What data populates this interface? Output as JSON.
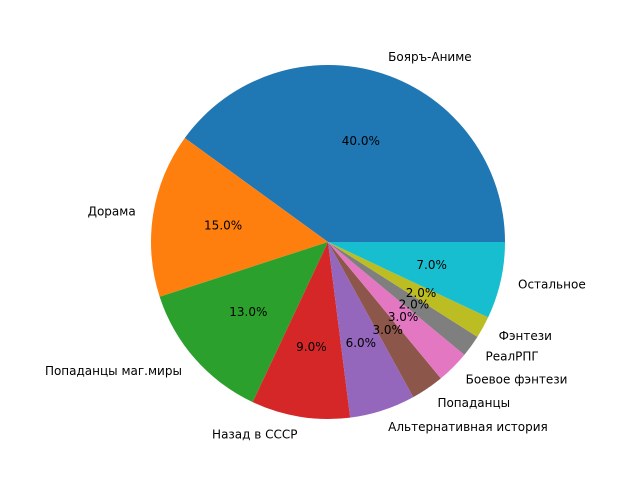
{
  "chart_data": {
    "type": "pie",
    "start_angle_deg": 0,
    "direction": "counterclockwise",
    "slices": [
      {
        "label": "Бояръ-Аниме",
        "value": 40.0,
        "pct_label": "40.0%",
        "color": "#1f77b4"
      },
      {
        "label": "Дорама",
        "value": 15.0,
        "pct_label": "15.0%",
        "color": "#ff7f0e"
      },
      {
        "label": "Попаданцы маг.миры",
        "value": 13.0,
        "pct_label": "13.0%",
        "color": "#2ca02c"
      },
      {
        "label": "Назад в СССР",
        "value": 9.0,
        "pct_label": "9.0%",
        "color": "#d62728"
      },
      {
        "label": "Альтернативная история",
        "value": 6.0,
        "pct_label": "6.0%",
        "color": "#9467bd"
      },
      {
        "label": "Попаданцы",
        "value": 3.0,
        "pct_label": "3.0%",
        "color": "#8c564b"
      },
      {
        "label": "Боевое фэнтези",
        "value": 3.0,
        "pct_label": "3.0%",
        "color": "#e377c2"
      },
      {
        "label": "РеалРПГ",
        "value": 2.0,
        "pct_label": "2.0%",
        "color": "#7f7f7f"
      },
      {
        "label": "Фэнтези",
        "value": 2.0,
        "pct_label": "2.0%",
        "color": "#bcbd22"
      },
      {
        "label": "Остальное",
        "value": 7.0,
        "pct_label": "7.0%",
        "color": "#17becf"
      }
    ]
  }
}
